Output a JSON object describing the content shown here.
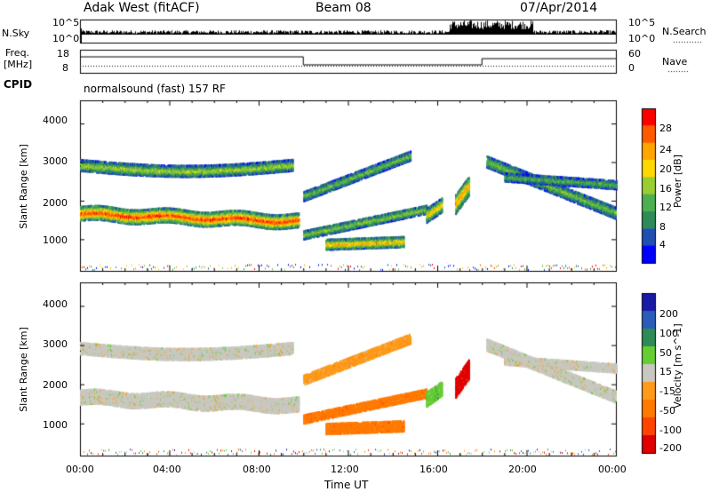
{
  "header": {
    "station": "Adak West (fitACF)",
    "beam": "Beam 08",
    "date": "07/Apr/2014"
  },
  "status_panels": {
    "nsky_label": "N.Sky",
    "nsearch_label": "N.Search",
    "nsky_ticks": [
      "10^5",
      "10^0"
    ],
    "freq_label": "Freq.",
    "freq_unit": "[MHz]",
    "freq_ticks": [
      "18",
      "8"
    ],
    "nave_label": "Nave",
    "nave_ticks": [
      "60",
      "0"
    ],
    "cpid_label": "CPID",
    "cpid_text": "normalsound (fast) 157 RF"
  },
  "chart_data": [
    {
      "type": "heatmap",
      "name": "power",
      "ylabel": "Slant Range [km]",
      "xlabel": "Time UT",
      "x_ticks": [
        "00:00",
        "04:00",
        "08:00",
        "12:00",
        "16:00",
        "20:00",
        "00:00"
      ],
      "y_ticks": [
        1000,
        2000,
        3000,
        4000
      ],
      "ylim": [
        180,
        4600
      ],
      "xlim_hours": [
        0,
        24
      ],
      "colorbar": {
        "label": "Power [dB]",
        "ticks": [
          4,
          8,
          12,
          16,
          20,
          24,
          28
        ],
        "colors": [
          "#0000ff",
          "#1f4fb4",
          "#2e8b57",
          "#4caf50",
          "#9acd32",
          "#ffd700",
          "#ffa500",
          "#ff5a00",
          "#ff0000"
        ]
      }
    },
    {
      "type": "heatmap",
      "name": "velocity",
      "ylabel": "Slant Range [km]",
      "xlabel": "Time UT",
      "x_ticks": [
        "00:00",
        "04:00",
        "08:00",
        "12:00",
        "16:00",
        "20:00",
        "00:00"
      ],
      "y_ticks": [
        1000,
        2000,
        3000,
        4000
      ],
      "ylim": [
        180,
        4600
      ],
      "xlim_hours": [
        0,
        24
      ],
      "colorbar": {
        "label": "Velocity [m s^-1]",
        "ticks": [
          200,
          100,
          50,
          15,
          -15,
          -50,
          -100,
          -200
        ],
        "colors": [
          "#1a1aa8",
          "#2a5db8",
          "#2e8b57",
          "#66cc33",
          "#c8c8c0",
          "#ff9a1a",
          "#ff7a00",
          "#ff4400",
          "#e00000"
        ]
      }
    }
  ]
}
